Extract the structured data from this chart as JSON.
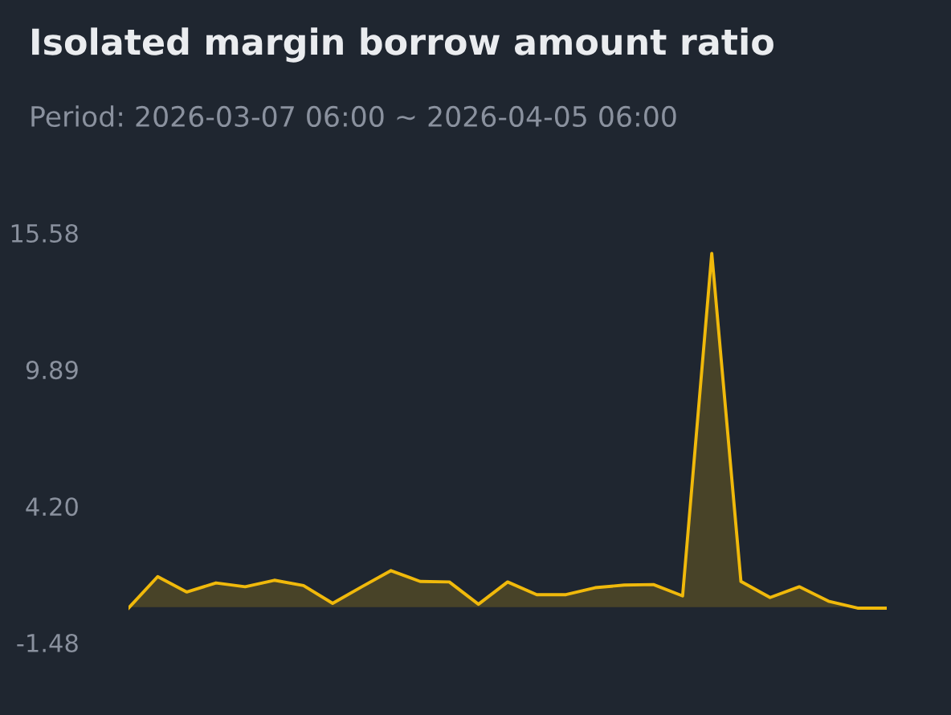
{
  "chart_data": {
    "type": "area",
    "title": "Isolated margin borrow amount ratio",
    "subtitle": "Period: 2026-03-07 06:00 ~ 2026-04-05 06:00",
    "categories": [
      null,
      null,
      null,
      null,
      null,
      null,
      null,
      null,
      null,
      null,
      null,
      null,
      null,
      null,
      null,
      null,
      null,
      null,
      null,
      null,
      null,
      null,
      null,
      null,
      null,
      null,
      null
    ],
    "series": [
      {
        "color": "#f0b90b",
        "values": [
          -0.04,
          1.27,
          0.63,
          1.01,
          0.85,
          1.12,
          0.9,
          0.16,
          0.85,
          1.52,
          1.07,
          1.05,
          0.12,
          1.05,
          0.52,
          0.52,
          0.81,
          0.92,
          0.94,
          0.47,
          14.73,
          1.07,
          0.4,
          0.85,
          0.25,
          -0.04,
          -0.04
        ]
      }
    ],
    "ylim": [
      -1.48,
      15.58
    ],
    "yticks": [
      {
        "value": -1.48,
        "label": "-1.48"
      },
      {
        "value": 4.2,
        "label": "4.20"
      },
      9.89,
      15.58
    ],
    "tick_labels": "y",
    "grid": false,
    "legend": false
  }
}
